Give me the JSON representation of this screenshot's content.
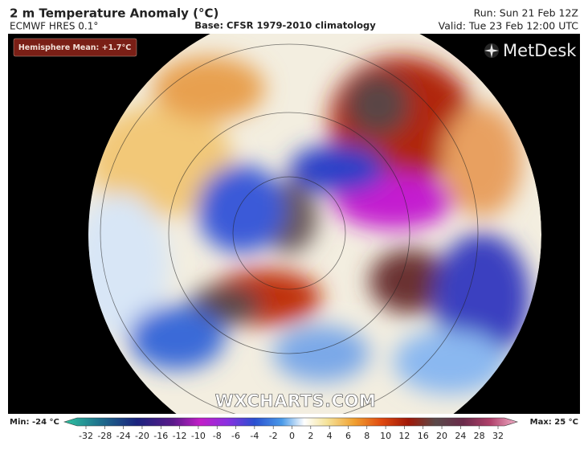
{
  "header": {
    "title": "2 m Temperature Anomaly (°C)",
    "model": "ECMWF HRES 0.1°",
    "base": "Base: CFSR 1979-2010 climatology",
    "run": "Run: Sun 21 Feb 12Z",
    "valid": "Valid: Tue 23 Feb 12:00 UTC"
  },
  "map": {
    "badge": "Hemisphere Mean: +1.7°C",
    "logo": "MetDesk",
    "watermark": "WXCHARTS.COM"
  },
  "colorbar": {
    "min_label": "Min: -24 °C",
    "max_label": "Max: 25 °C",
    "ticks": [
      -32,
      -28,
      -24,
      -20,
      -16,
      -12,
      -10,
      -8,
      -6,
      -4,
      -2,
      0,
      2,
      4,
      6,
      8,
      10,
      12,
      16,
      20,
      24,
      28,
      32
    ]
  }
}
